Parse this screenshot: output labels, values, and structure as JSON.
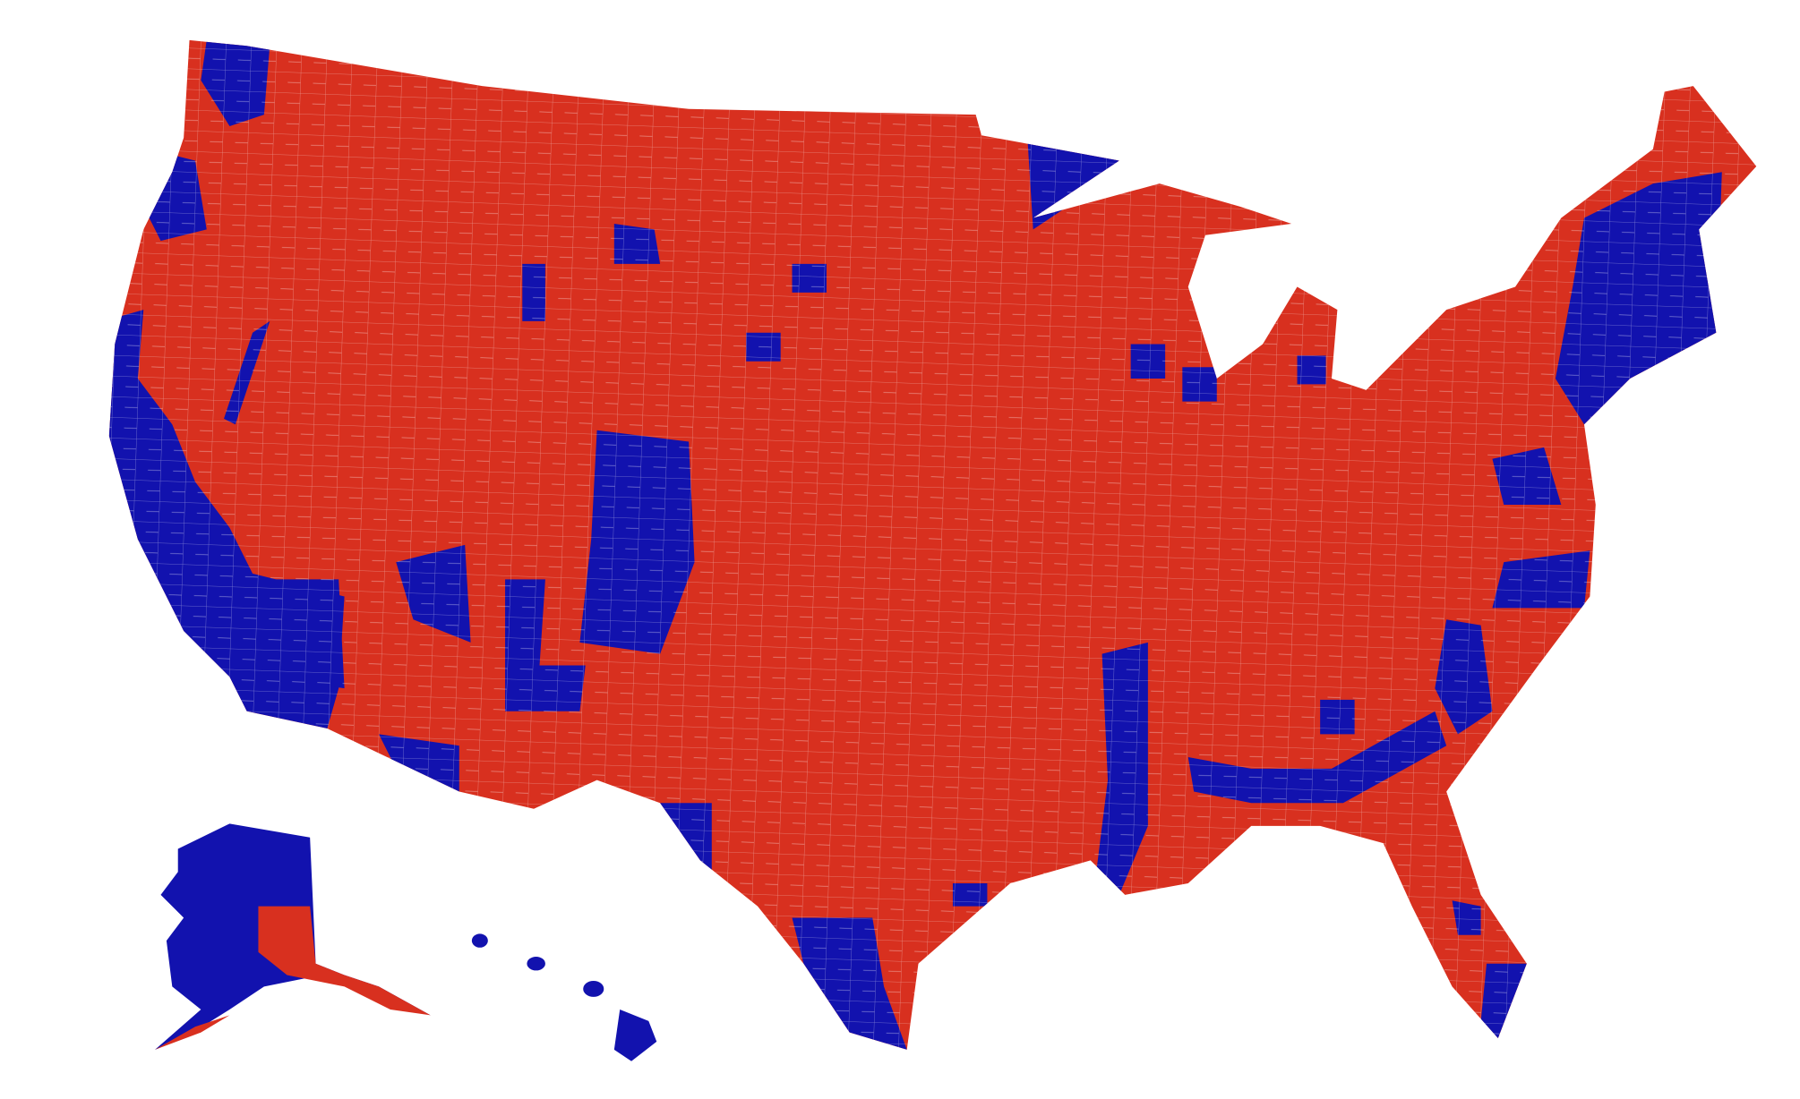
{
  "map": {
    "region_colors": [
      "#d8301f",
      "#1212ae"
    ],
    "background": "#ffffff"
  }
}
